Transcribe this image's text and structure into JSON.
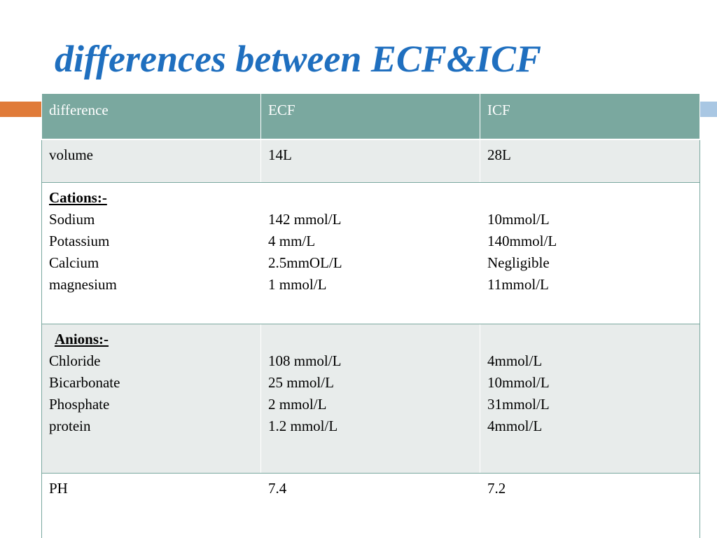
{
  "title": "differences between ECF&ICF",
  "colors": {
    "title": "#1f6fbf",
    "header_bg": "#7aa89f",
    "shade_bg": "#e8eceb",
    "accent_orange": "#e07b39",
    "accent_blue": "#a9c7e3"
  },
  "table": {
    "headers": [
      "difference",
      "ECF",
      "ICF"
    ],
    "volume": {
      "label": "volume",
      "ecf": "14L",
      "icf": "28L"
    },
    "cations": {
      "heading": "Cations:-",
      "names": [
        "Sodium",
        "Potassium",
        "Calcium",
        "magnesium"
      ],
      "ecf": [
        "142 mmol/L",
        "4 mm/L",
        "2.5mmOL/L",
        "1 mmol/L"
      ],
      "icf": [
        "10mmol/L",
        "140mmol/L",
        "Negligible",
        "11mmol/L"
      ]
    },
    "anions": {
      "heading": "Anions:-",
      "names": [
        "Chloride",
        "Bicarbonate",
        "Phosphate",
        "protein"
      ],
      "ecf": [
        "108 mmol/L",
        "25 mmol/L",
        "2 mmol/L",
        "1.2 mmol/L"
      ],
      "icf": [
        "4mmol/L",
        "10mmol/L",
        "31mmol/L",
        "4mmol/L"
      ]
    },
    "ph": {
      "label": "PH",
      "ecf": "7.4",
      "icf": "7.2"
    }
  }
}
